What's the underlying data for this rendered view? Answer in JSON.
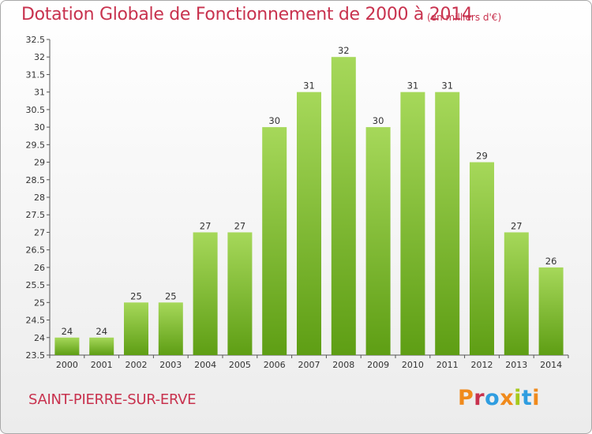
{
  "header": {
    "title": "Dotation Globale de Fonctionnement de 2000 à 2014",
    "subtitle": "(en milliers d'€)"
  },
  "footer": {
    "commune": "SAINT-PIERRE-SUR-ERVE",
    "logo_text": "Proxiti"
  },
  "colors": {
    "title": "#c8324e",
    "bar_light": "#a6d85a",
    "bar_dark": "#5e9e14",
    "logo_letters": [
      "#f08a1c",
      "#c8324e",
      "#2f9de0",
      "#f08a1c",
      "#a6c91c",
      "#2f9de0",
      "#f08a1c"
    ]
  },
  "chart_data": {
    "type": "bar",
    "title": "Dotation Globale de Fonctionnement de 2000 à 2014",
    "subtitle": "(en milliers d'€)",
    "categories": [
      "2000",
      "2001",
      "2002",
      "2003",
      "2004",
      "2005",
      "2006",
      "2007",
      "2008",
      "2009",
      "2010",
      "2011",
      "2012",
      "2013",
      "2014"
    ],
    "values": [
      24,
      24,
      25,
      25,
      27,
      27,
      30,
      31,
      32,
      30,
      31,
      31,
      29,
      27,
      26
    ],
    "ylim": [
      23.5,
      32.5
    ],
    "yticks": [
      "23.5",
      "24",
      "24.5",
      "25",
      "25.5",
      "26",
      "26.5",
      "27",
      "27.5",
      "28",
      "28.5",
      "29",
      "29.5",
      "30",
      "30.5",
      "31",
      "31.5",
      "32",
      "32.5"
    ],
    "grid": false,
    "legend": "none",
    "data_labels": true
  }
}
